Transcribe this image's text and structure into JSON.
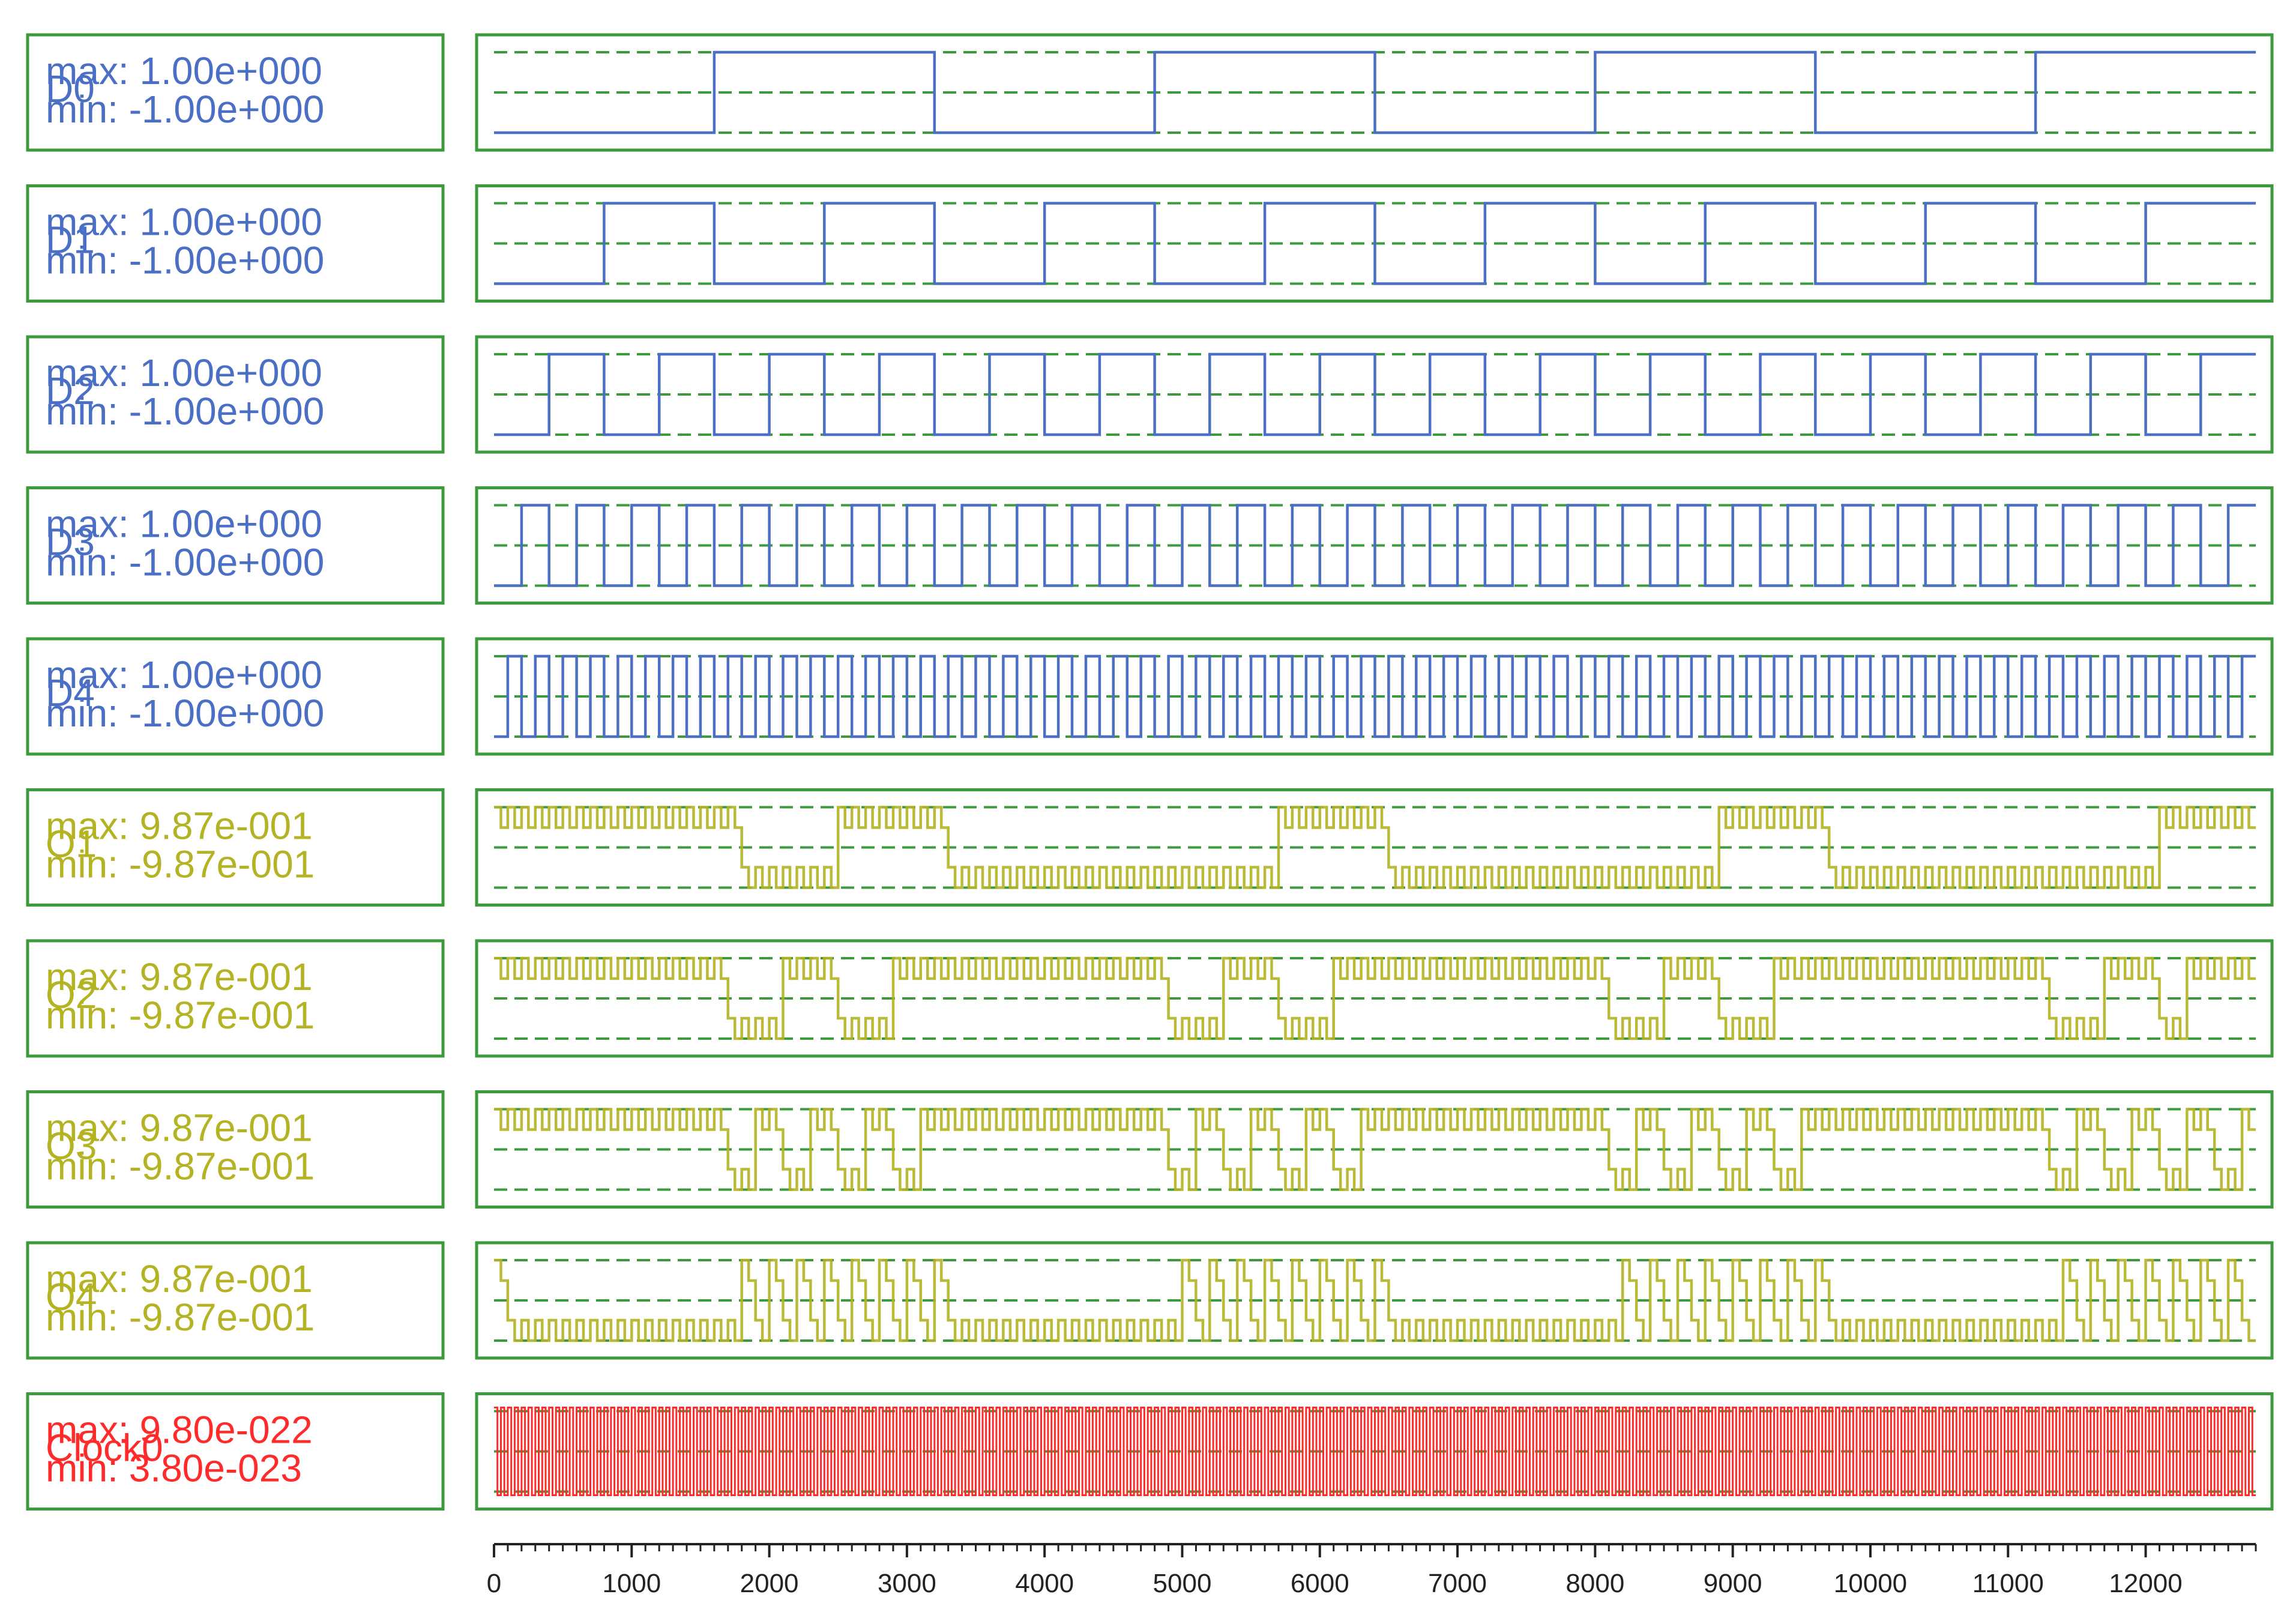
{
  "chart_data": {
    "type": "line",
    "x_axis": {
      "range": [
        0,
        12800
      ],
      "major_ticks": [
        0,
        1000,
        2000,
        3000,
        4000,
        5000,
        6000,
        7000,
        8000,
        9000,
        10000,
        11000,
        12000
      ],
      "tick_labels": [
        "0",
        "1000",
        "2000",
        "3000",
        "4000",
        "5000",
        "6000",
        "7000",
        "8000",
        "9000",
        "10000",
        "11000",
        "12000"
      ],
      "minor_step": 100
    },
    "series": [
      {
        "name": "D0",
        "max_label": "max: 1.00e+000",
        "min_label": "min: -1.00e+000",
        "max": 1.0,
        "min": -1.0,
        "kind": "square",
        "period": 3200,
        "rise_at": 1600,
        "color": "#4a6fc4"
      },
      {
        "name": "D1",
        "max_label": "max: 1.00e+000",
        "min_label": "min: -1.00e+000",
        "max": 1.0,
        "min": -1.0,
        "kind": "square",
        "period": 1600,
        "rise_at": 800,
        "color": "#4a6fc4"
      },
      {
        "name": "D2",
        "max_label": "max: 1.00e+000",
        "min_label": "min: -1.00e+000",
        "max": 1.0,
        "min": -1.0,
        "kind": "square",
        "period": 800,
        "rise_at": 400,
        "color": "#4a6fc4"
      },
      {
        "name": "D3",
        "max_label": "max: 1.00e+000",
        "min_label": "min: -1.00e+000",
        "max": 1.0,
        "min": -1.0,
        "kind": "square",
        "period": 400,
        "rise_at": 200,
        "color": "#4a6fc4"
      },
      {
        "name": "D4",
        "max_label": "max: 1.00e+000",
        "min_label": "min: -1.00e+000",
        "max": 1.0,
        "min": -1.0,
        "kind": "square",
        "period": 200,
        "rise_at": 100,
        "color": "#4a6fc4"
      },
      {
        "name": "O1",
        "max_label": "max: 9.87e-001",
        "min_label": "min: -9.87e-001",
        "max": 0.987,
        "min": -0.987,
        "kind": "modulated",
        "carrier_period": 100,
        "segments": [
          [
            0,
            1800,
            1
          ],
          [
            1800,
            2500,
            -1
          ],
          [
            2500,
            3300,
            1
          ],
          [
            3300,
            5700,
            -1
          ],
          [
            5700,
            6500,
            1
          ],
          [
            6500,
            8900,
            -1
          ],
          [
            8900,
            9700,
            1
          ],
          [
            9700,
            12100,
            -1
          ],
          [
            12100,
            12800,
            1
          ]
        ],
        "color": "#b3b323"
      },
      {
        "name": "O2",
        "max_label": "max: 9.87e-001",
        "min_label": "min: -9.87e-001",
        "max": 0.987,
        "min": -0.987,
        "kind": "modulated",
        "carrier_period": 100,
        "segments": [
          [
            0,
            1700,
            1
          ],
          [
            1700,
            2100,
            -1
          ],
          [
            2100,
            2500,
            1
          ],
          [
            2500,
            2900,
            -1
          ],
          [
            2900,
            4900,
            1
          ],
          [
            4900,
            5300,
            -1
          ],
          [
            5300,
            5700,
            1
          ],
          [
            5700,
            6100,
            -1
          ],
          [
            6100,
            8100,
            1
          ],
          [
            8100,
            8500,
            -1
          ],
          [
            8500,
            8900,
            1
          ],
          [
            8900,
            9300,
            -1
          ],
          [
            9300,
            11300,
            1
          ],
          [
            11300,
            11700,
            -1
          ],
          [
            11700,
            12100,
            1
          ],
          [
            12100,
            12300,
            -1
          ],
          [
            12300,
            12800,
            1
          ]
        ],
        "color": "#b3b323"
      },
      {
        "name": "O3",
        "max_label": "max: 9.87e-001",
        "min_label": "min: -9.87e-001",
        "max": 0.987,
        "min": -0.987,
        "kind": "modulated",
        "carrier_period": 100,
        "segments": [
          [
            0,
            1700,
            1
          ],
          [
            1700,
            1900,
            -1
          ],
          [
            1900,
            2100,
            1
          ],
          [
            2100,
            2300,
            -1
          ],
          [
            2300,
            2500,
            1
          ],
          [
            2500,
            2700,
            -1
          ],
          [
            2700,
            2900,
            1
          ],
          [
            2900,
            3100,
            -1
          ],
          [
            3100,
            4900,
            1
          ],
          [
            4900,
            5100,
            -1
          ],
          [
            5100,
            5300,
            1
          ],
          [
            5300,
            5500,
            -1
          ],
          [
            5500,
            5700,
            1
          ],
          [
            5700,
            5900,
            -1
          ],
          [
            5900,
            6100,
            1
          ],
          [
            6100,
            6300,
            -1
          ],
          [
            6300,
            8100,
            1
          ],
          [
            8100,
            8300,
            -1
          ],
          [
            8300,
            8500,
            1
          ],
          [
            8500,
            8700,
            -1
          ],
          [
            8700,
            8900,
            1
          ],
          [
            8900,
            9100,
            -1
          ],
          [
            9100,
            9300,
            1
          ],
          [
            9300,
            9500,
            -1
          ],
          [
            9500,
            11300,
            1
          ],
          [
            11300,
            11500,
            -1
          ],
          [
            11500,
            11700,
            1
          ],
          [
            11700,
            11900,
            -1
          ],
          [
            11900,
            12100,
            1
          ],
          [
            12100,
            12300,
            -1
          ],
          [
            12300,
            12500,
            1
          ],
          [
            12500,
            12700,
            -1
          ],
          [
            12700,
            12800,
            1
          ]
        ],
        "color": "#b3b323"
      },
      {
        "name": "O4",
        "max_label": "max: 9.87e-001",
        "min_label": "min: -9.87e-001",
        "max": 0.987,
        "min": -0.987,
        "kind": "modulated",
        "carrier_period": 100,
        "segments": [
          [
            0,
            100,
            1
          ],
          [
            100,
            1800,
            -1
          ],
          [
            1800,
            1900,
            1
          ],
          [
            1900,
            2000,
            -1
          ],
          [
            2000,
            2100,
            1
          ],
          [
            2100,
            2200,
            -1
          ],
          [
            2200,
            2300,
            1
          ],
          [
            2300,
            2400,
            -1
          ],
          [
            2400,
            2500,
            1
          ],
          [
            2500,
            2600,
            -1
          ],
          [
            2600,
            2700,
            1
          ],
          [
            2700,
            2800,
            -1
          ],
          [
            2800,
            2900,
            1
          ],
          [
            2900,
            3000,
            -1
          ],
          [
            3000,
            3100,
            1
          ],
          [
            3100,
            3200,
            -1
          ],
          [
            3200,
            3300,
            1
          ],
          [
            3300,
            5000,
            -1
          ],
          [
            5000,
            5100,
            1
          ],
          [
            5100,
            5200,
            -1
          ],
          [
            5200,
            5300,
            1
          ],
          [
            5300,
            5400,
            -1
          ],
          [
            5400,
            5500,
            1
          ],
          [
            5500,
            5600,
            -1
          ],
          [
            5600,
            5700,
            1
          ],
          [
            5700,
            5800,
            -1
          ],
          [
            5800,
            5900,
            1
          ],
          [
            5900,
            6000,
            -1
          ],
          [
            6000,
            6100,
            1
          ],
          [
            6100,
            6200,
            -1
          ],
          [
            6200,
            6300,
            1
          ],
          [
            6300,
            6400,
            -1
          ],
          [
            6400,
            6500,
            1
          ],
          [
            6500,
            8200,
            -1
          ],
          [
            8200,
            8300,
            1
          ],
          [
            8300,
            8400,
            -1
          ],
          [
            8400,
            8500,
            1
          ],
          [
            8500,
            8600,
            -1
          ],
          [
            8600,
            8700,
            1
          ],
          [
            8700,
            8800,
            -1
          ],
          [
            8800,
            8900,
            1
          ],
          [
            8900,
            9000,
            -1
          ],
          [
            9000,
            9100,
            1
          ],
          [
            9100,
            9200,
            -1
          ],
          [
            9200,
            9300,
            1
          ],
          [
            9300,
            9400,
            -1
          ],
          [
            9400,
            9500,
            1
          ],
          [
            9500,
            9600,
            -1
          ],
          [
            9600,
            9700,
            1
          ],
          [
            9700,
            11400,
            -1
          ],
          [
            11400,
            11500,
            1
          ],
          [
            11500,
            11600,
            -1
          ],
          [
            11600,
            11700,
            1
          ],
          [
            11700,
            11800,
            -1
          ],
          [
            11800,
            11900,
            1
          ],
          [
            11900,
            12000,
            -1
          ],
          [
            12000,
            12100,
            1
          ],
          [
            12100,
            12200,
            -1
          ],
          [
            12200,
            12300,
            1
          ],
          [
            12300,
            12400,
            -1
          ],
          [
            12400,
            12500,
            1
          ],
          [
            12500,
            12600,
            -1
          ],
          [
            12600,
            12700,
            1
          ],
          [
            12700,
            12800,
            -1
          ]
        ],
        "color": "#b3b323"
      },
      {
        "name": "Clock0",
        "max_label": "max: 9.80e-022",
        "min_label": "min: 3.80e-023",
        "max": 9.8e-22,
        "min": 3.8e-23,
        "kind": "clock",
        "period": 50,
        "color": "#ff2a2a"
      }
    ]
  }
}
